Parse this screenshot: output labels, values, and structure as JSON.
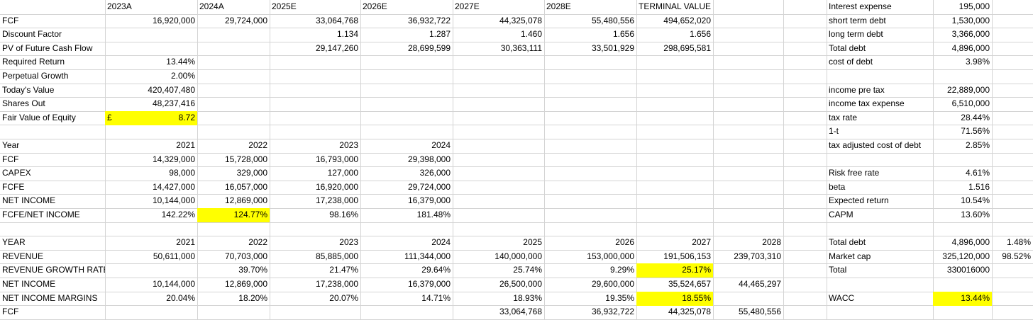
{
  "sheet": {
    "highlight_color": "#ffff00",
    "blocks": [
      {
        "name": "valuation",
        "rows": [
          [
            "",
            "2023A",
            "2024A",
            "2025E",
            "2026E",
            "2027E",
            "2028E",
            "TERMINAL VALUE"
          ],
          [
            "FCF",
            "16,920,000",
            "29,724,000",
            "33,064,768",
            "36,932,722",
            "44,325,078",
            "55,480,556",
            "494,652,020"
          ],
          [
            "Discount Factor",
            "",
            "",
            "1.134",
            "1.287",
            "1.460",
            "1.656",
            "1.656"
          ],
          [
            " PV of Future Cash Flow",
            "",
            "",
            "29,147,260",
            "28,699,599",
            "30,363,111",
            "33,501,929",
            "298,695,581"
          ],
          [
            "Required Return",
            "13.44%"
          ],
          [
            "Perpetual Growth",
            "2.00%"
          ],
          [
            "Today's Value",
            "420,407,480"
          ],
          [
            "Shares Out",
            "48,237,416"
          ],
          [
            "Fair Value of Equity",
            "8.72"
          ]
        ],
        "currency_symbol": "£"
      },
      {
        "name": "fcfe",
        "rows": [
          [
            "Year",
            "2021",
            "2022",
            "2023",
            "2024"
          ],
          [
            "FCF",
            "14,329,000",
            "15,728,000",
            "16,793,000",
            "29,398,000"
          ],
          [
            "CAPEX",
            "98,000",
            "329,000",
            "127,000",
            "326,000"
          ],
          [
            "FCFE",
            "14,427,000",
            "16,057,000",
            "16,920,000",
            "29,724,000"
          ],
          [
            "NET INCOME",
            "10,144,000",
            "12,869,000",
            "17,238,000",
            "16,379,000"
          ],
          [
            "FCFE/NET INCOME",
            "142.22%",
            "124.77%",
            "98.16%",
            "181.48%"
          ]
        ]
      },
      {
        "name": "projection",
        "rows": [
          [
            "YEAR",
            "2021",
            "2022",
            "2023",
            "2024",
            "2025",
            "2026",
            "2027",
            "2028"
          ],
          [
            "REVENUE",
            "50,611,000",
            "70,703,000",
            "85,885,000",
            "111,344,000",
            "140,000,000",
            "153,000,000",
            "191,506,153",
            "239,703,310"
          ],
          [
            "REVENUE GROWTH RATE",
            "",
            "39.70%",
            "21.47%",
            "29.64%",
            "25.74%",
            "9.29%",
            "25.17%",
            ""
          ],
          [
            "NET INCOME",
            "10,144,000",
            "12,869,000",
            "17,238,000",
            "16,379,000",
            "26,500,000",
            "29,600,000",
            "35,524,657",
            "44,465,297"
          ],
          [
            "NET INCOME MARGINS",
            "20.04%",
            "18.20%",
            "20.07%",
            "14.71%",
            "18.93%",
            "19.35%",
            "18.55%",
            ""
          ],
          [
            "FCF",
            "",
            "",
            "",
            "",
            "33,064,768",
            "36,932,722",
            "44,325,078",
            "55,480,556"
          ]
        ]
      },
      {
        "name": "wacc",
        "rows": [
          [
            "Interest expense",
            "195,000"
          ],
          [
            "short term debt",
            "1,530,000"
          ],
          [
            "long term debt",
            "3,366,000"
          ],
          [
            "Total debt",
            "4,896,000"
          ],
          [
            "cost of debt",
            "3.98%"
          ],
          [
            "",
            ""
          ],
          [
            "income pre tax",
            "22,889,000"
          ],
          [
            "income tax expense",
            "6,510,000"
          ],
          [
            "tax rate",
            "28.44%"
          ],
          [
            "1-t",
            "71.56%"
          ],
          [
            "tax adjusted cost of debt",
            "2.85%"
          ],
          [
            "",
            ""
          ],
          [
            "Risk free rate",
            "4.61%"
          ],
          [
            "beta",
            "1.516"
          ],
          [
            "Expected return",
            "10.54%"
          ],
          [
            "CAPM",
            "13.60%"
          ],
          [
            "",
            ""
          ],
          [
            "Total debt",
            "4,896,000",
            "1.48%"
          ],
          [
            "Market cap",
            "325,120,000",
            "98.52%"
          ],
          [
            "Total",
            "330016000"
          ],
          [
            "",
            ""
          ],
          [
            "WACC",
            "13.44%"
          ]
        ]
      }
    ]
  }
}
